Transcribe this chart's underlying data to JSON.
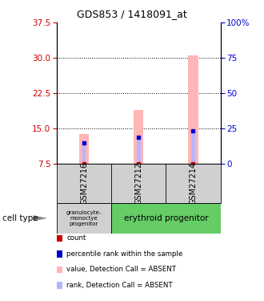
{
  "title": "GDS853 / 1418091_at",
  "samples": [
    "GSM27216",
    "GSM27212",
    "GSM27214"
  ],
  "cell_types_col0": "granulocyte-\nmonoctye\nprogenitor",
  "cell_types_col12": "erythroid progenitor",
  "cell_type_color_gray": "#d0d0d0",
  "cell_type_color_green": "#66cc66",
  "ylim_left": [
    7.5,
    37.5
  ],
  "yticks_left": [
    7.5,
    15.0,
    22.5,
    30.0,
    37.5
  ],
  "ylim_right": [
    0,
    100
  ],
  "yticks_right": [
    0,
    25,
    50,
    75,
    100
  ],
  "ytick_labels_right": [
    "0",
    "25",
    "50",
    "75",
    "100%"
  ],
  "pink_bar_tops": [
    13.8,
    19.0,
    30.5
  ],
  "blue_bar_tops": [
    12.0,
    13.2,
    14.5
  ],
  "base": 7.5,
  "pink_bar_width": 0.18,
  "blue_bar_width": 0.07,
  "bar_color_pink": "#ffb6b6",
  "bar_color_blue": "#b6b6ff",
  "marker_red": "#cc0000",
  "marker_blue": "#0000cc",
  "left_ycolor": "#cc0000",
  "right_ycolor": "#0000cc",
  "grid_lines": [
    15.0,
    22.5,
    30.0
  ],
  "legend_items": [
    {
      "color": "#cc0000",
      "label": "count"
    },
    {
      "color": "#0000cc",
      "label": "percentile rank within the sample"
    },
    {
      "color": "#ffb6b6",
      "label": "value, Detection Call = ABSENT"
    },
    {
      "color": "#b6b6ff",
      "label": "rank, Detection Call = ABSENT"
    }
  ]
}
